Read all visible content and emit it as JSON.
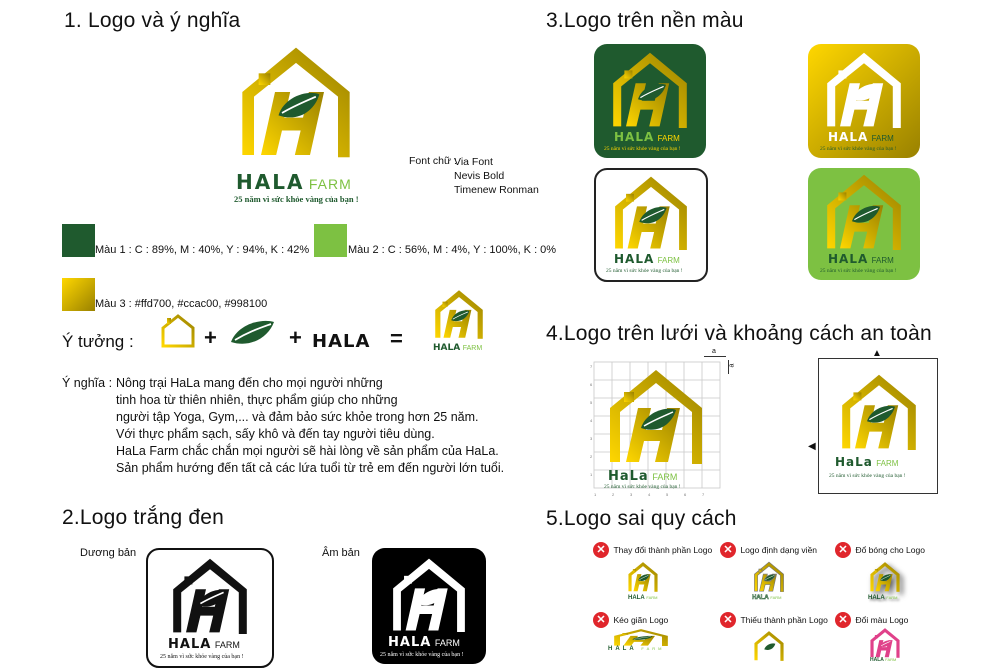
{
  "colors": {
    "dark_green": "#1f5a2e",
    "light_green": "#7dc142",
    "gold1": "#ffd700",
    "gold2": "#ccac00",
    "gold3": "#998100",
    "wrong": "#e0262c",
    "pink": "#e0418a"
  },
  "section1": {
    "title": "1. Logo và ý nghĩa"
  },
  "logo": {
    "brand": "HALA",
    "farm": "FARM",
    "tagline": "25 năm vì sức khỏe vàng của bạn !",
    "brand_alt": "HaLa"
  },
  "fonts": {
    "label": "Font chữ :",
    "list": [
      "Via Font",
      "Nevis Bold",
      "Timenew Ronman"
    ]
  },
  "colors_info": {
    "c1": "Màu 1 : C : 89%, M : 40%, Y : 94%, K : 42%",
    "c2": "Màu 2 : C : 56%, M : 4%, Y : 100%, K : 0%",
    "c3": "Màu 3 : #ffd700, #ccac00, #998100"
  },
  "idea": {
    "label": "Ý tưởng :",
    "plus1": "+",
    "plus2": "+",
    "word": "HALA",
    "equals": "="
  },
  "meaning": {
    "label": "Ý nghĩa :",
    "lines": [
      "Nông trại HaLa mang đến cho mọi người những",
      "tinh hoa từ thiên nhiên, thực phẩm giúp cho những",
      "người tập Yoga, Gym,... và đảm bảo sức khỏe trong hơn 25 năm.",
      "Với thực phẩm sạch, sấy khô và đến tay người tiêu dùng.",
      "HaLa Farm chắc chắn mọi người sẽ hài lòng về sản phẩm của HaLa.",
      "Sản phẩm hướng đến tất cả các lứa tuổi từ trẻ em đến người lớn tuổi."
    ]
  },
  "section2": {
    "title": "2.Logo trắng đen",
    "positive": "Dương bản",
    "negative": "Âm bản"
  },
  "section3": {
    "title": "3.Logo trên nền màu"
  },
  "section4": {
    "title": "4.Logo trên lưới và khoảng cách an toàn",
    "grid_a": "a",
    "grid_b": "a",
    "xticks": [
      "1",
      "2",
      "3",
      "4",
      "5",
      "6",
      "7"
    ],
    "yticks": [
      "7",
      "6",
      "5",
      "4",
      "3",
      "2",
      "1"
    ]
  },
  "section5": {
    "title": "5.Logo sai quy cách",
    "items": [
      "Thay đổi thành phần Logo",
      "Logo định dạng viền",
      "Đổ bóng cho Logo",
      "Kéo giãn Logo",
      "Thiếu thành phần Logo",
      "Đổi màu Logo"
    ]
  }
}
